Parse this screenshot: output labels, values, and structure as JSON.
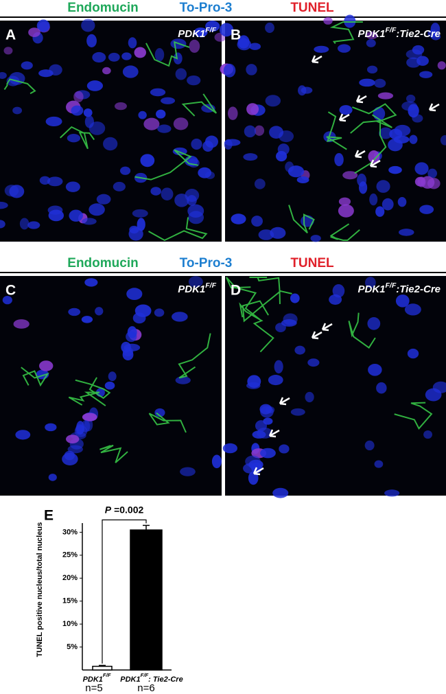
{
  "header_rows": [
    [
      "Endomucin",
      "To-Pro-3",
      "TUNEL"
    ],
    [
      "Endomucin",
      "To-Pro-3",
      "TUNEL"
    ]
  ],
  "panels": [
    {
      "letter": "A",
      "genotype": {
        "base": "PDK1",
        "sup": "F/F"
      }
    },
    {
      "letter": "B",
      "genotype": {
        "base": "PDK1",
        "sup": "F/F",
        "suffix": ":Tie2-Cre"
      }
    },
    {
      "letter": "C",
      "genotype": {
        "base": "PDK1",
        "sup": "F/F"
      }
    },
    {
      "letter": "D",
      "genotype": {
        "base": "PDK1",
        "sup": "F/F",
        "suffix": ":Tie2-Cre"
      }
    }
  ],
  "chart_data": {
    "type": "bar",
    "panel_letter": "E",
    "ylabel": "TUNEL positive nucleus/total nucleus",
    "categories": [
      {
        "base": "PDK1",
        "sup": "F/F"
      },
      {
        "base": "PDK1",
        "sup": "F/F",
        "suffix": ": Tie2-Cre"
      }
    ],
    "n_labels": [
      "n=5",
      "n=6"
    ],
    "values": [
      0.8,
      30.5
    ],
    "errors": [
      0.2,
      1
    ],
    "colors": [
      "#ffffff",
      "#000000"
    ],
    "significance": {
      "symbol": "P",
      "value": "=0.002"
    },
    "ylim": [
      0,
      32
    ],
    "yticks": [
      {
        "value": 5,
        "label": "5%"
      },
      {
        "value": 10,
        "label": "10%"
      },
      {
        "value": 15,
        "label": "15%"
      },
      {
        "value": 20,
        "label": "20%"
      },
      {
        "value": 25,
        "label": "25%"
      },
      {
        "value": 30,
        "label": "30%"
      }
    ]
  }
}
